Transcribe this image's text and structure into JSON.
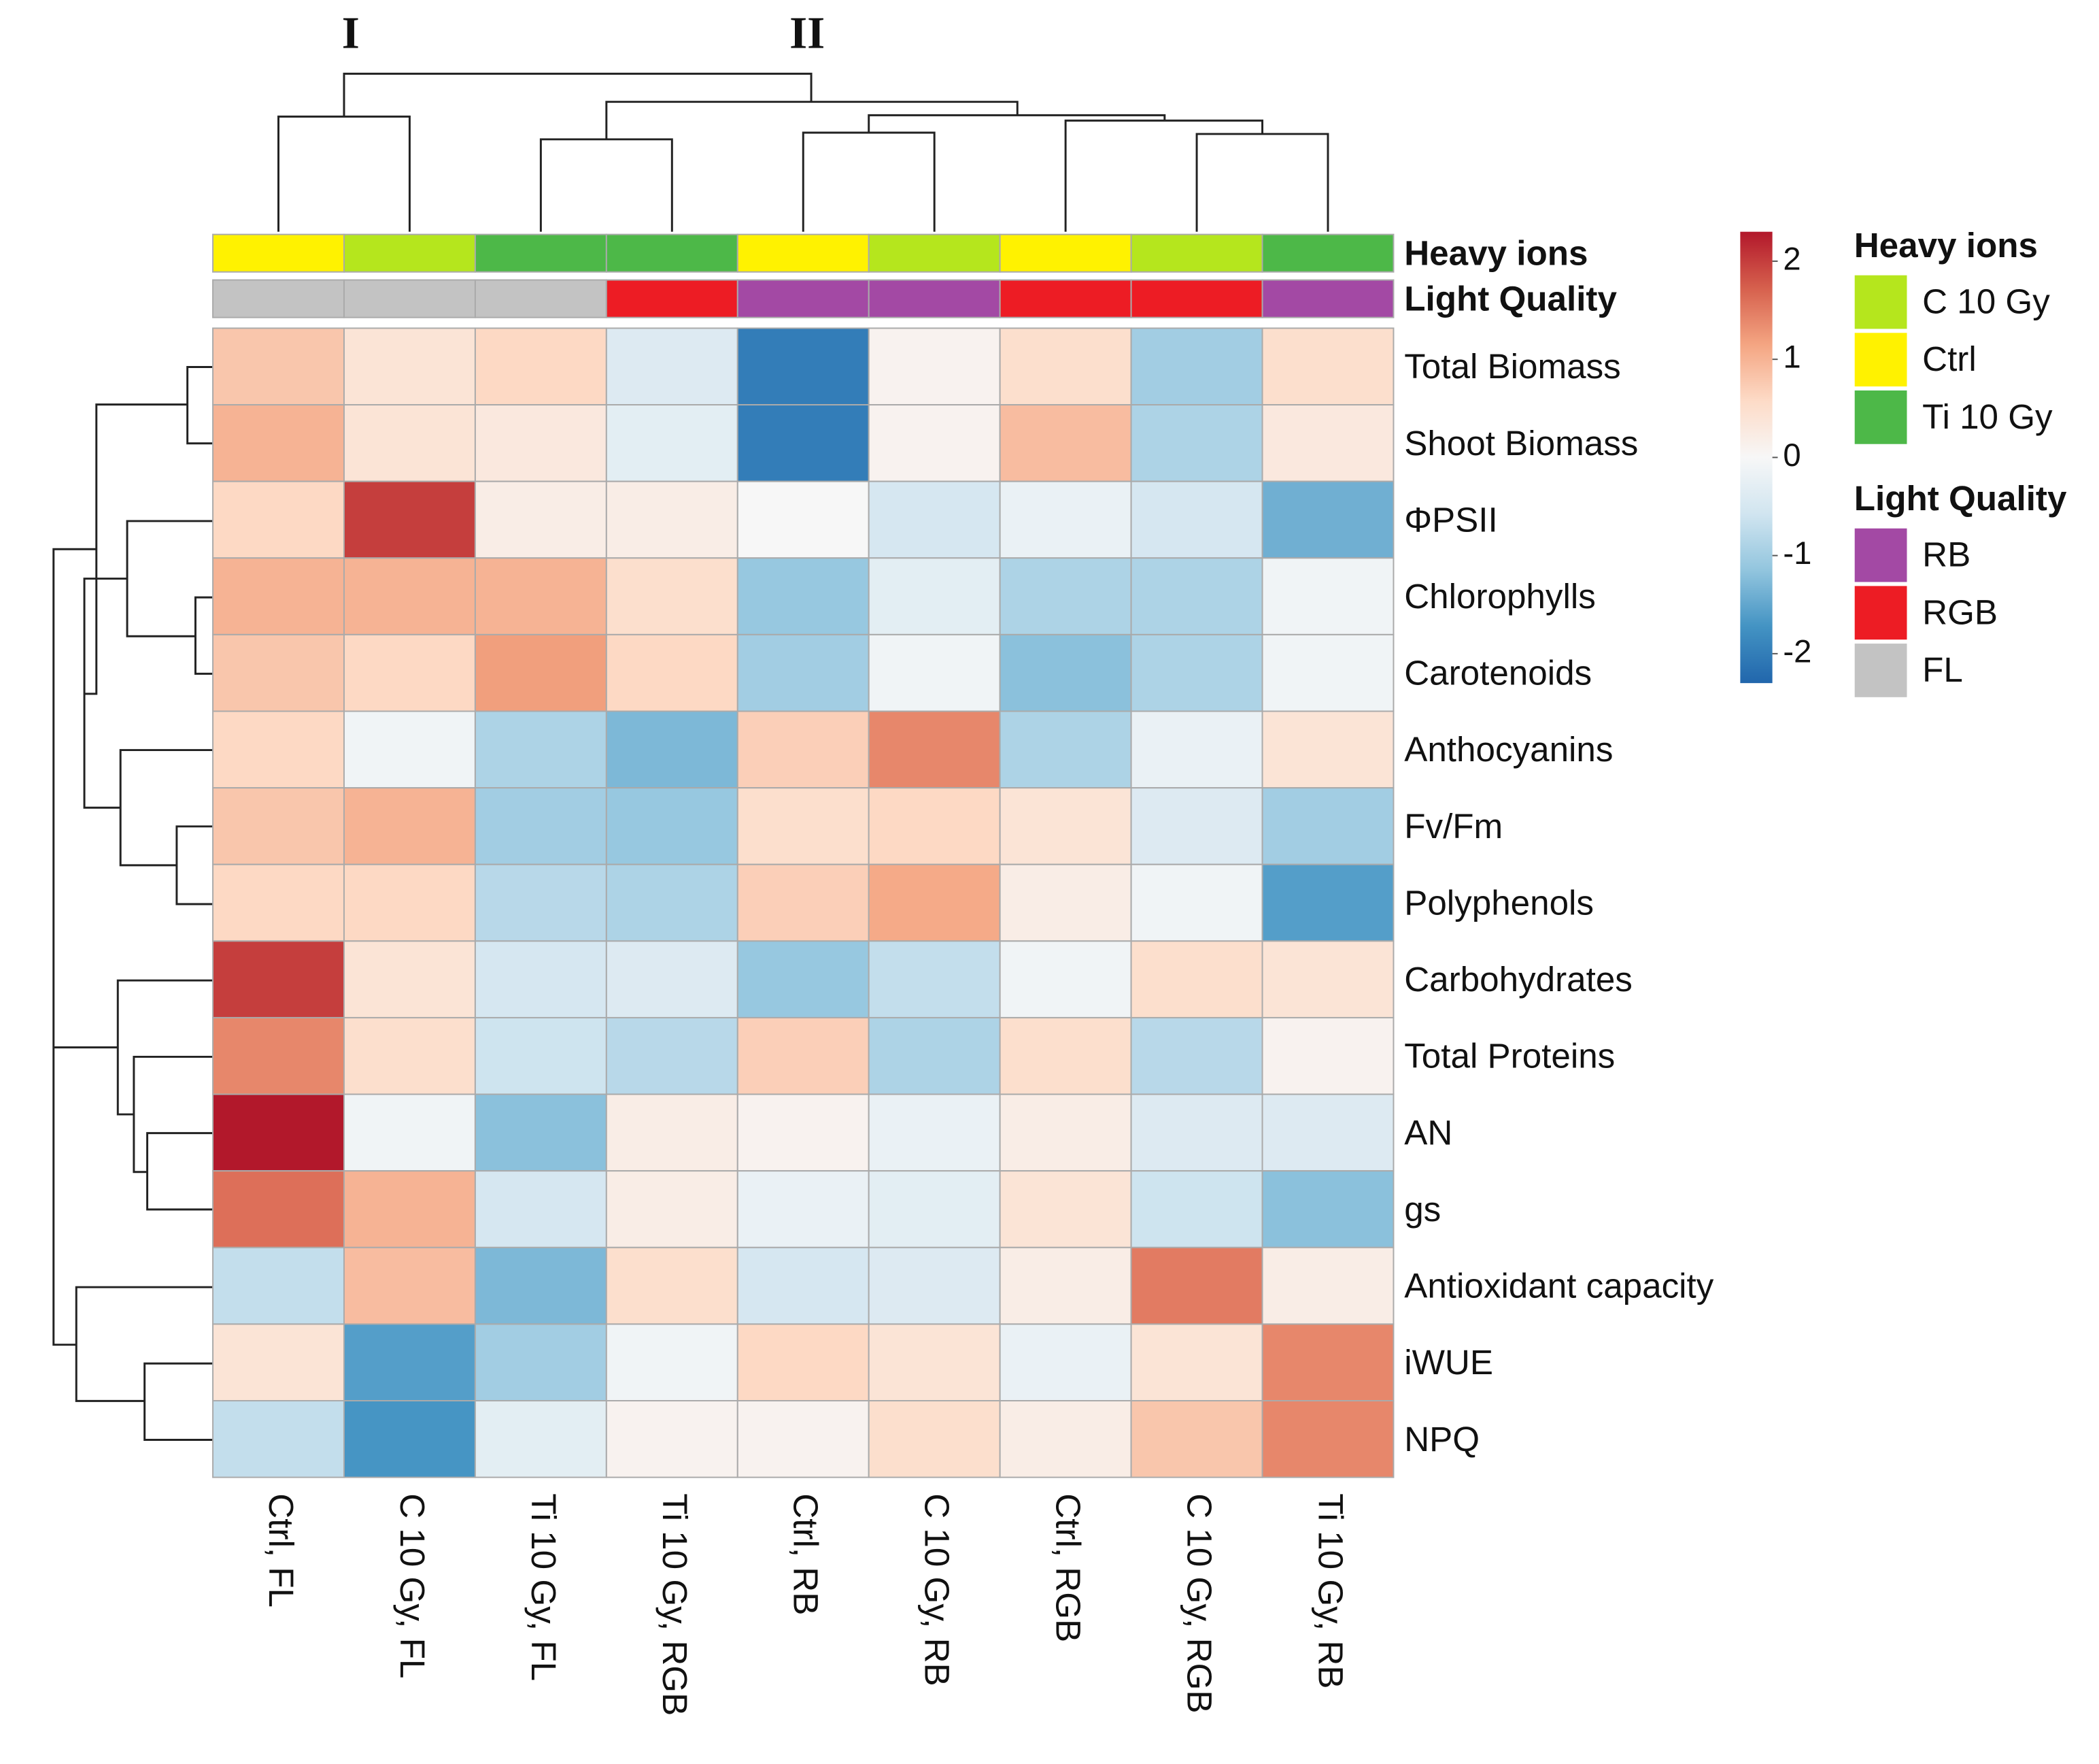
{
  "chart_data": {
    "type": "heatmap",
    "clusters": [
      "I",
      "II"
    ],
    "rows": [
      "Total Biomass",
      "Shoot Biomass",
      "ΦPSII",
      "Chlorophylls",
      "Carotenoids",
      "Anthocyanins",
      "Fv/Fm",
      "Polyphenols",
      "Carbohydrates",
      "Total Proteins",
      "AN",
      "gs",
      "Antioxidant capacity",
      "iWUE",
      "NPQ"
    ],
    "columns": [
      "Ctrl, FL",
      "C 10 Gy, FL",
      "Ti 10 Gy, FL",
      "Ti 10 Gy, RGB",
      "Ctrl, RB",
      "C 10 Gy, RB",
      "Ctrl, RGB",
      "C 10 Gy, RGB",
      "Ti 10 Gy, RB"
    ],
    "values": [
      [
        0.8,
        0.4,
        0.6,
        -0.4,
        -2.0,
        0.1,
        0.5,
        -1.0,
        0.5
      ],
      [
        1.0,
        0.4,
        0.3,
        -0.3,
        -2.0,
        0.1,
        0.9,
        -0.9,
        0.3
      ],
      [
        0.6,
        2.0,
        0.2,
        0.2,
        0.0,
        -0.5,
        -0.2,
        -0.5,
        -1.4
      ],
      [
        1.0,
        1.0,
        1.0,
        0.5,
        -1.1,
        -0.3,
        -0.9,
        -0.9,
        -0.1
      ],
      [
        0.8,
        0.6,
        1.2,
        0.6,
        -1.0,
        -0.1,
        -1.2,
        -0.9,
        -0.1
      ],
      [
        0.6,
        -0.1,
        -0.9,
        -1.3,
        0.7,
        1.4,
        -0.9,
        -0.2,
        0.4
      ],
      [
        0.8,
        1.0,
        -1.0,
        -1.1,
        0.5,
        0.6,
        0.4,
        -0.4,
        -1.0
      ],
      [
        0.6,
        0.6,
        -0.8,
        -0.9,
        0.7,
        1.1,
        0.2,
        -0.1,
        -1.6
      ],
      [
        2.0,
        0.4,
        -0.5,
        -0.4,
        -1.1,
        -0.7,
        -0.1,
        0.5,
        0.4
      ],
      [
        1.4,
        0.5,
        -0.6,
        -0.8,
        0.7,
        -0.9,
        0.5,
        -0.8,
        0.1
      ],
      [
        2.3,
        -0.1,
        -1.2,
        0.2,
        0.1,
        -0.2,
        0.2,
        -0.4,
        -0.4
      ],
      [
        1.6,
        1.0,
        -0.5,
        0.2,
        -0.2,
        -0.3,
        0.4,
        -0.6,
        -1.2
      ],
      [
        -0.7,
        0.9,
        -1.3,
        0.5,
        -0.5,
        -0.4,
        0.2,
        1.5,
        0.2
      ],
      [
        0.4,
        -1.6,
        -1.0,
        -0.1,
        0.6,
        0.4,
        -0.2,
        0.4,
        1.4
      ],
      [
        -0.7,
        -1.7,
        -0.3,
        0.1,
        0.1,
        0.5,
        0.2,
        0.8,
        1.4
      ]
    ],
    "zlim": [
      -2.3,
      2.3
    ],
    "zticks": [
      2,
      1,
      0,
      -1,
      -2
    ],
    "colors": [
      "#2166ac",
      "#4393c3",
      "#92c5de",
      "#d1e5f0",
      "#f7f7f7",
      "#fddbc7",
      "#f4a582",
      "#d6604d",
      "#b2182b"
    ],
    "annotations": [
      {
        "name": "Heavy ions",
        "levels": [
          {
            "label": "C 10 Gy",
            "color": "#b5e61d"
          },
          {
            "label": "Ctrl",
            "color": "#fff200"
          },
          {
            "label": "Ti 10 Gy",
            "color": "#4db848"
          }
        ],
        "values": [
          "Ctrl",
          "C 10 Gy",
          "Ti 10 Gy",
          "Ti 10 Gy",
          "Ctrl",
          "C 10 Gy",
          "Ctrl",
          "C 10 Gy",
          "Ti 10 Gy"
        ]
      },
      {
        "name": "Light Quality",
        "levels": [
          {
            "label": "RB",
            "color": "#a349a4"
          },
          {
            "label": "RGB",
            "color": "#ed1c24"
          },
          {
            "label": "FL",
            "color": "#c3c3c3"
          }
        ],
        "values": [
          "FL",
          "FL",
          "FL",
          "RGB",
          "RB",
          "RB",
          "RGB",
          "RGB",
          "RB"
        ]
      }
    ]
  }
}
